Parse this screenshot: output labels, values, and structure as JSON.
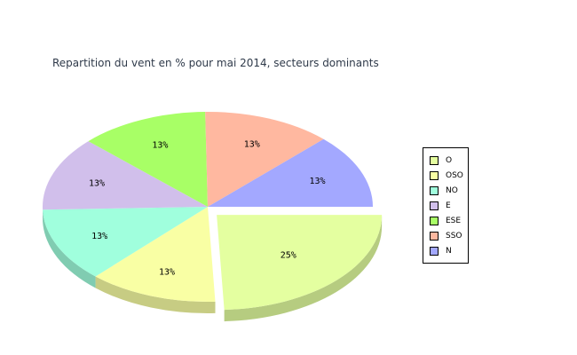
{
  "chart_data": {
    "type": "pie",
    "title": "Repartition du vent en % pour mai 2014, secteurs dominants",
    "slices": [
      {
        "name": "O",
        "value": 25,
        "label": "25%",
        "color": "#e4ffa0",
        "side": "#b6cc80",
        "exploded": true
      },
      {
        "name": "OSO",
        "value": 13,
        "label": "13%",
        "color": "#f9ffa4",
        "side": "#c7cc83",
        "exploded": false
      },
      {
        "name": "NO",
        "value": 13,
        "label": "13%",
        "color": "#a0ffdd",
        "side": "#80ccb1",
        "exploded": false
      },
      {
        "name": "E",
        "value": 13,
        "label": "13%",
        "color": "#d1bfeb",
        "side": "#a799bc",
        "exploded": false
      },
      {
        "name": "ESE",
        "value": 13,
        "label": "13%",
        "color": "#a8ff66",
        "side": "#86cc52",
        "exploded": false
      },
      {
        "name": "SSO",
        "value": 13,
        "label": "13%",
        "color": "#ffb8a0",
        "side": "#cc9380",
        "exploded": false
      },
      {
        "name": "N",
        "value": 13,
        "label": "13%",
        "color": "#a3a8ff",
        "side": "#7f84d6",
        "exploded": false
      }
    ],
    "legend_position": "right"
  }
}
